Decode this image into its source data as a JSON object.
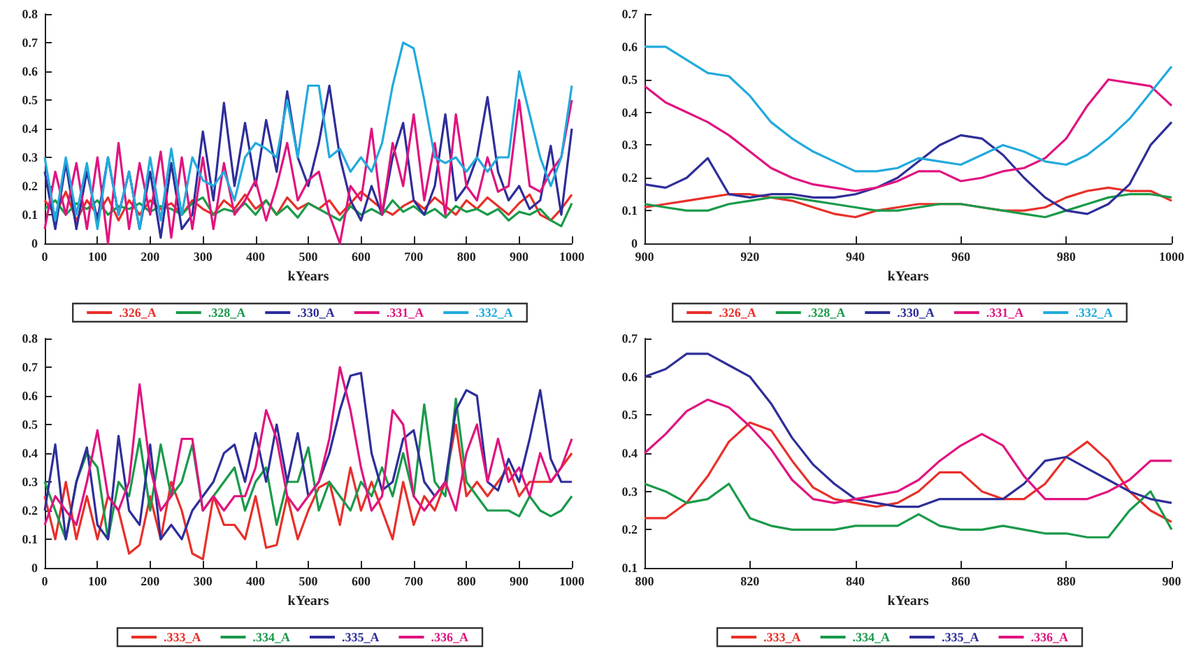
{
  "chart_data": [
    {
      "type": "line",
      "xlabel": "kYears",
      "legend": "bottom",
      "marker": "none",
      "xlim": [
        0,
        1000
      ],
      "xticks": [
        0,
        100,
        200,
        300,
        400,
        500,
        600,
        700,
        800,
        900,
        1000
      ],
      "ylim": [
        0,
        0.8
      ],
      "yticks": [
        0,
        0.1,
        0.2,
        0.3,
        0.4,
        0.5,
        0.6,
        0.7,
        0.8
      ],
      "x": [
        0,
        20,
        40,
        60,
        80,
        100,
        120,
        140,
        160,
        180,
        200,
        220,
        240,
        260,
        280,
        300,
        320,
        340,
        360,
        380,
        400,
        420,
        440,
        460,
        480,
        500,
        520,
        540,
        560,
        580,
        600,
        620,
        640,
        660,
        680,
        700,
        720,
        740,
        760,
        780,
        800,
        820,
        840,
        860,
        880,
        900,
        920,
        940,
        960,
        980,
        1000
      ],
      "series": [
        {
          "name": ".326_A",
          "color": "#e8302a",
          "values": [
            0.15,
            0.1,
            0.18,
            0.08,
            0.15,
            0.1,
            0.16,
            0.08,
            0.15,
            0.1,
            0.15,
            0.12,
            0.14,
            0.1,
            0.15,
            0.12,
            0.1,
            0.15,
            0.12,
            0.17,
            0.12,
            0.15,
            0.1,
            0.16,
            0.12,
            0.14,
            0.12,
            0.15,
            0.1,
            0.14,
            0.18,
            0.15,
            0.12,
            0.1,
            0.13,
            0.15,
            0.12,
            0.16,
            0.13,
            0.1,
            0.15,
            0.12,
            0.16,
            0.13,
            0.1,
            0.14,
            0.17,
            0.1,
            0.08,
            0.12,
            0.17
          ]
        },
        {
          "name": ".328_A",
          "color": "#1a9a4a",
          "values": [
            0.12,
            0.15,
            0.1,
            0.14,
            0.12,
            0.15,
            0.1,
            0.13,
            0.12,
            0.14,
            0.11,
            0.13,
            0.12,
            0.1,
            0.14,
            0.16,
            0.1,
            0.12,
            0.11,
            0.14,
            0.1,
            0.15,
            0.1,
            0.13,
            0.09,
            0.14,
            0.12,
            0.1,
            0.08,
            0.13,
            0.1,
            0.12,
            0.1,
            0.15,
            0.11,
            0.13,
            0.1,
            0.12,
            0.09,
            0.13,
            0.11,
            0.12,
            0.1,
            0.12,
            0.08,
            0.11,
            0.1,
            0.12,
            0.08,
            0.06,
            0.14
          ]
        },
        {
          "name": ".330_A",
          "color": "#2e2e9a",
          "values": [
            0.25,
            0.05,
            0.28,
            0.05,
            0.25,
            0.08,
            0.3,
            0.1,
            0.25,
            0.05,
            0.25,
            0.02,
            0.28,
            0.05,
            0.1,
            0.39,
            0.15,
            0.49,
            0.2,
            0.42,
            0.2,
            0.43,
            0.25,
            0.53,
            0.3,
            0.2,
            0.35,
            0.55,
            0.3,
            0.15,
            0.08,
            0.2,
            0.1,
            0.3,
            0.42,
            0.15,
            0.1,
            0.2,
            0.45,
            0.15,
            0.2,
            0.3,
            0.51,
            0.25,
            0.15,
            0.2,
            0.12,
            0.15,
            0.34,
            0.1,
            0.4
          ]
        },
        {
          "name": ".331_A",
          "color": "#e0147f",
          "values": [
            0.05,
            0.25,
            0.1,
            0.28,
            0.05,
            0.3,
            0.0,
            0.35,
            0.05,
            0.28,
            0.1,
            0.32,
            0.02,
            0.3,
            0.05,
            0.3,
            0.05,
            0.28,
            0.1,
            0.15,
            0.22,
            0.08,
            0.2,
            0.35,
            0.15,
            0.22,
            0.25,
            0.1,
            0.0,
            0.2,
            0.15,
            0.4,
            0.1,
            0.35,
            0.2,
            0.45,
            0.15,
            0.35,
            0.1,
            0.45,
            0.2,
            0.15,
            0.3,
            0.18,
            0.2,
            0.5,
            0.2,
            0.18,
            0.25,
            0.3,
            0.5
          ]
        },
        {
          "name": ".332_A",
          "color": "#22aadd",
          "values": [
            0.3,
            0.08,
            0.3,
            0.1,
            0.28,
            0.05,
            0.3,
            0.1,
            0.25,
            0.05,
            0.3,
            0.08,
            0.33,
            0.1,
            0.3,
            0.22,
            0.2,
            0.25,
            0.15,
            0.3,
            0.35,
            0.33,
            0.3,
            0.5,
            0.3,
            0.55,
            0.55,
            0.3,
            0.33,
            0.25,
            0.3,
            0.25,
            0.35,
            0.55,
            0.7,
            0.68,
            0.5,
            0.3,
            0.28,
            0.3,
            0.25,
            0.3,
            0.25,
            0.3,
            0.3,
            0.6,
            0.45,
            0.3,
            0.2,
            0.3,
            0.55
          ]
        }
      ]
    },
    {
      "type": "line",
      "xlabel": "kYears",
      "legend": "bottom",
      "marker": "none",
      "xlim": [
        900,
        1000
      ],
      "xticks": [
        900,
        920,
        940,
        960,
        980,
        1000
      ],
      "ylim": [
        0,
        0.7
      ],
      "yticks": [
        0,
        0.1,
        0.2,
        0.3,
        0.4,
        0.5,
        0.6,
        0.7
      ],
      "x": [
        900,
        904,
        908,
        912,
        916,
        920,
        924,
        928,
        932,
        936,
        940,
        944,
        948,
        952,
        956,
        960,
        964,
        968,
        972,
        976,
        980,
        984,
        988,
        992,
        996,
        1000
      ],
      "series": [
        {
          "name": ".326_A",
          "color": "#e8302a",
          "values": [
            0.11,
            0.12,
            0.13,
            0.14,
            0.15,
            0.15,
            0.14,
            0.13,
            0.11,
            0.09,
            0.08,
            0.1,
            0.11,
            0.12,
            0.12,
            0.12,
            0.11,
            0.1,
            0.1,
            0.11,
            0.14,
            0.16,
            0.17,
            0.16,
            0.16,
            0.13
          ]
        },
        {
          "name": ".328_A",
          "color": "#1a9a4a",
          "values": [
            0.12,
            0.11,
            0.1,
            0.1,
            0.12,
            0.13,
            0.14,
            0.14,
            0.13,
            0.12,
            0.11,
            0.1,
            0.1,
            0.11,
            0.12,
            0.12,
            0.11,
            0.1,
            0.09,
            0.08,
            0.1,
            0.12,
            0.14,
            0.15,
            0.15,
            0.14
          ]
        },
        {
          "name": ".330_A",
          "color": "#2e2e9a",
          "values": [
            0.18,
            0.17,
            0.2,
            0.26,
            0.15,
            0.14,
            0.15,
            0.15,
            0.14,
            0.14,
            0.15,
            0.17,
            0.2,
            0.25,
            0.3,
            0.33,
            0.32,
            0.27,
            0.2,
            0.14,
            0.1,
            0.09,
            0.12,
            0.18,
            0.3,
            0.37
          ]
        },
        {
          "name": ".331_A",
          "color": "#e0147f",
          "values": [
            0.48,
            0.43,
            0.4,
            0.37,
            0.33,
            0.28,
            0.23,
            0.2,
            0.18,
            0.17,
            0.16,
            0.17,
            0.19,
            0.22,
            0.22,
            0.19,
            0.2,
            0.22,
            0.23,
            0.26,
            0.32,
            0.42,
            0.5,
            0.49,
            0.48,
            0.42
          ]
        },
        {
          "name": ".332_A",
          "color": "#22aadd",
          "values": [
            0.6,
            0.6,
            0.56,
            0.52,
            0.51,
            0.45,
            0.37,
            0.32,
            0.28,
            0.25,
            0.22,
            0.22,
            0.23,
            0.26,
            0.25,
            0.24,
            0.27,
            0.3,
            0.28,
            0.25,
            0.24,
            0.27,
            0.32,
            0.38,
            0.46,
            0.54
          ]
        }
      ]
    },
    {
      "type": "line",
      "xlabel": "kYears",
      "legend": "bottom",
      "marker": "none",
      "xlim": [
        0,
        1000
      ],
      "xticks": [
        0,
        100,
        200,
        300,
        400,
        500,
        600,
        700,
        800,
        900,
        1000
      ],
      "ylim": [
        0,
        0.8
      ],
      "yticks": [
        0,
        0.1,
        0.2,
        0.3,
        0.4,
        0.5,
        0.6,
        0.7,
        0.8
      ],
      "x": [
        0,
        20,
        40,
        60,
        80,
        100,
        120,
        140,
        160,
        180,
        200,
        220,
        240,
        260,
        280,
        300,
        320,
        340,
        360,
        380,
        400,
        420,
        440,
        460,
        480,
        500,
        520,
        540,
        560,
        580,
        600,
        620,
        640,
        660,
        680,
        700,
        720,
        740,
        760,
        780,
        800,
        820,
        840,
        860,
        880,
        900,
        920,
        940,
        960,
        980,
        1000
      ],
      "series": [
        {
          "name": ".333_A",
          "color": "#e8302a",
          "values": [
            0.25,
            0.1,
            0.3,
            0.1,
            0.25,
            0.1,
            0.25,
            0.2,
            0.05,
            0.08,
            0.25,
            0.1,
            0.3,
            0.2,
            0.05,
            0.03,
            0.25,
            0.15,
            0.15,
            0.1,
            0.25,
            0.07,
            0.08,
            0.25,
            0.1,
            0.2,
            0.28,
            0.3,
            0.15,
            0.35,
            0.2,
            0.3,
            0.2,
            0.1,
            0.3,
            0.15,
            0.25,
            0.2,
            0.3,
            0.5,
            0.25,
            0.3,
            0.25,
            0.3,
            0.35,
            0.25,
            0.3,
            0.3,
            0.3,
            0.35,
            0.4
          ]
        },
        {
          "name": ".334_A",
          "color": "#1a9a4a",
          "values": [
            0.3,
            0.2,
            0.1,
            0.3,
            0.4,
            0.35,
            0.1,
            0.3,
            0.25,
            0.45,
            0.2,
            0.43,
            0.25,
            0.3,
            0.43,
            0.2,
            0.25,
            0.3,
            0.35,
            0.2,
            0.3,
            0.35,
            0.15,
            0.3,
            0.3,
            0.42,
            0.2,
            0.3,
            0.25,
            0.2,
            0.3,
            0.25,
            0.35,
            0.25,
            0.4,
            0.25,
            0.57,
            0.3,
            0.25,
            0.59,
            0.3,
            0.25,
            0.2,
            0.2,
            0.2,
            0.18,
            0.25,
            0.2,
            0.18,
            0.2,
            0.25
          ]
        },
        {
          "name": ".335_A",
          "color": "#2e2e9a",
          "values": [
            0.2,
            0.43,
            0.1,
            0.3,
            0.42,
            0.15,
            0.1,
            0.46,
            0.2,
            0.15,
            0.43,
            0.1,
            0.15,
            0.1,
            0.2,
            0.25,
            0.3,
            0.4,
            0.43,
            0.3,
            0.47,
            0.3,
            0.5,
            0.3,
            0.47,
            0.25,
            0.3,
            0.4,
            0.55,
            0.67,
            0.68,
            0.4,
            0.27,
            0.3,
            0.45,
            0.48,
            0.3,
            0.25,
            0.3,
            0.55,
            0.62,
            0.6,
            0.3,
            0.27,
            0.38,
            0.3,
            0.45,
            0.62,
            0.38,
            0.3,
            0.3
          ]
        },
        {
          "name": ".336_A",
          "color": "#e0147f",
          "values": [
            0.15,
            0.25,
            0.2,
            0.15,
            0.3,
            0.48,
            0.25,
            0.2,
            0.3,
            0.64,
            0.35,
            0.2,
            0.25,
            0.45,
            0.45,
            0.2,
            0.25,
            0.2,
            0.25,
            0.25,
            0.35,
            0.55,
            0.45,
            0.25,
            0.2,
            0.25,
            0.3,
            0.45,
            0.7,
            0.55,
            0.35,
            0.2,
            0.25,
            0.55,
            0.5,
            0.25,
            0.2,
            0.25,
            0.3,
            0.2,
            0.4,
            0.5,
            0.3,
            0.45,
            0.3,
            0.35,
            0.25,
            0.4,
            0.3,
            0.35,
            0.45
          ]
        }
      ]
    },
    {
      "type": "line",
      "xlabel": "kYears",
      "legend": "bottom",
      "marker": "none",
      "xlim": [
        800,
        900
      ],
      "xticks": [
        800,
        820,
        840,
        860,
        880,
        900
      ],
      "ylim": [
        0.1,
        0.7
      ],
      "yticks": [
        0.1,
        0.2,
        0.3,
        0.4,
        0.5,
        0.6,
        0.7
      ],
      "x": [
        800,
        804,
        808,
        812,
        816,
        820,
        824,
        828,
        832,
        836,
        840,
        844,
        848,
        852,
        856,
        860,
        864,
        868,
        872,
        876,
        880,
        884,
        888,
        892,
        896,
        900
      ],
      "series": [
        {
          "name": ".333_A",
          "color": "#e8302a",
          "values": [
            0.23,
            0.23,
            0.27,
            0.34,
            0.43,
            0.48,
            0.46,
            0.38,
            0.31,
            0.28,
            0.27,
            0.26,
            0.27,
            0.3,
            0.35,
            0.35,
            0.3,
            0.28,
            0.28,
            0.32,
            0.39,
            0.43,
            0.38,
            0.3,
            0.25,
            0.22
          ]
        },
        {
          "name": ".334_A",
          "color": "#1a9a4a",
          "values": [
            0.32,
            0.3,
            0.27,
            0.28,
            0.32,
            0.23,
            0.21,
            0.2,
            0.2,
            0.2,
            0.21,
            0.21,
            0.21,
            0.24,
            0.21,
            0.2,
            0.2,
            0.21,
            0.2,
            0.19,
            0.19,
            0.18,
            0.18,
            0.25,
            0.3,
            0.2
          ]
        },
        {
          "name": ".335_A",
          "color": "#2e2e9a",
          "values": [
            0.6,
            0.62,
            0.66,
            0.66,
            0.63,
            0.6,
            0.53,
            0.44,
            0.37,
            0.32,
            0.28,
            0.27,
            0.26,
            0.26,
            0.28,
            0.28,
            0.28,
            0.28,
            0.32,
            0.38,
            0.39,
            0.36,
            0.33,
            0.3,
            0.28,
            0.27
          ]
        },
        {
          "name": ".336_A",
          "color": "#e0147f",
          "values": [
            0.4,
            0.45,
            0.51,
            0.54,
            0.52,
            0.47,
            0.41,
            0.33,
            0.28,
            0.27,
            0.28,
            0.29,
            0.3,
            0.33,
            0.38,
            0.42,
            0.45,
            0.42,
            0.34,
            0.28,
            0.28,
            0.28,
            0.3,
            0.33,
            0.38,
            0.38
          ]
        }
      ]
    }
  ]
}
